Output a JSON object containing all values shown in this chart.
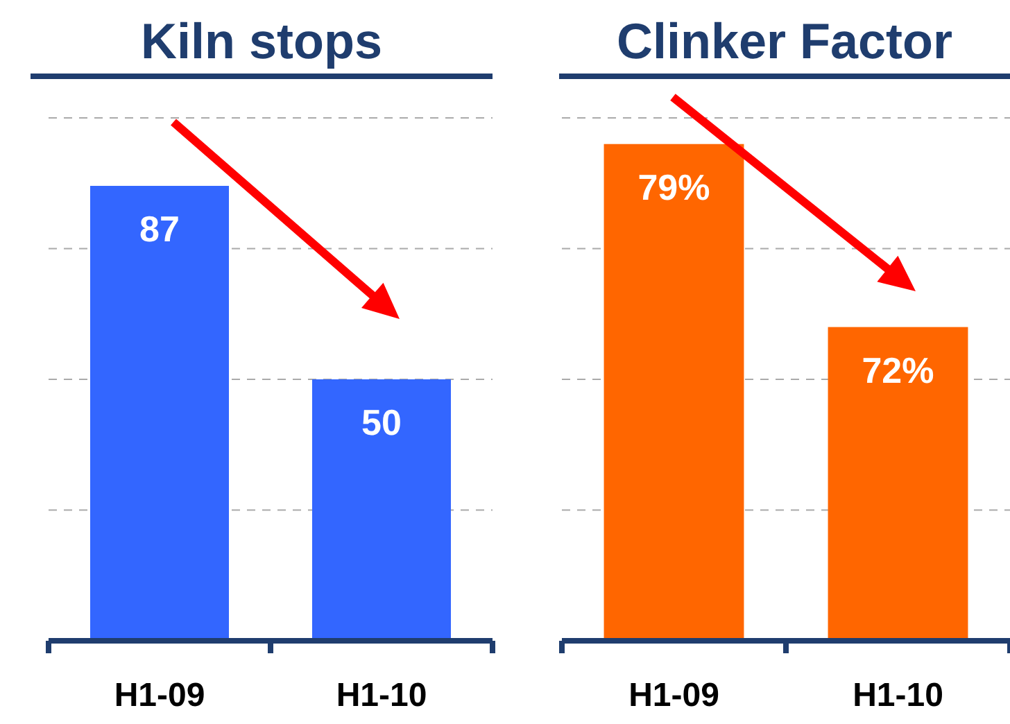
{
  "chart_data": [
    {
      "type": "bar",
      "title": "Kiln stops",
      "categories": [
        "H1-09",
        "H1-10"
      ],
      "values": [
        87,
        50
      ],
      "color": "#3366ff",
      "ylim": [
        0,
        100
      ],
      "yticks": [
        {
          "value": 0,
          "label": null
        },
        {
          "value": 25,
          "label": null
        },
        {
          "value": 50,
          "label": null
        },
        {
          "value": 75,
          "label": null
        },
        {
          "value": 100,
          "label": null
        }
      ],
      "grid": "y",
      "data_labels": true
    },
    {
      "type": "bar",
      "title": "Clinker Factor",
      "categories": [
        "H1-09",
        "H1-10"
      ],
      "values": [
        79,
        72
      ],
      "color": "#ff6600",
      "ylim": [
        60,
        80
      ],
      "yticks": [
        {
          "value": 60,
          "label": null
        },
        {
          "value": 65,
          "label": null
        },
        {
          "value": 70,
          "label": null
        },
        {
          "value": 75,
          "label": null
        },
        {
          "value": 80,
          "label": null
        }
      ],
      "grid": "y",
      "value_labels": [
        "79%",
        "72%"
      ]
    }
  ]
}
